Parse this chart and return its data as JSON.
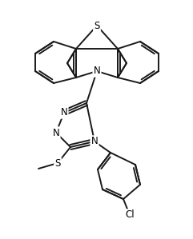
{
  "background": "#ffffff",
  "line_color": "#1a1a1a",
  "line_width": 1.4,
  "figsize": [
    2.41,
    2.99
  ],
  "dpi": 100,
  "xlim": [
    0,
    241
  ],
  "ylim": [
    0,
    299
  ]
}
